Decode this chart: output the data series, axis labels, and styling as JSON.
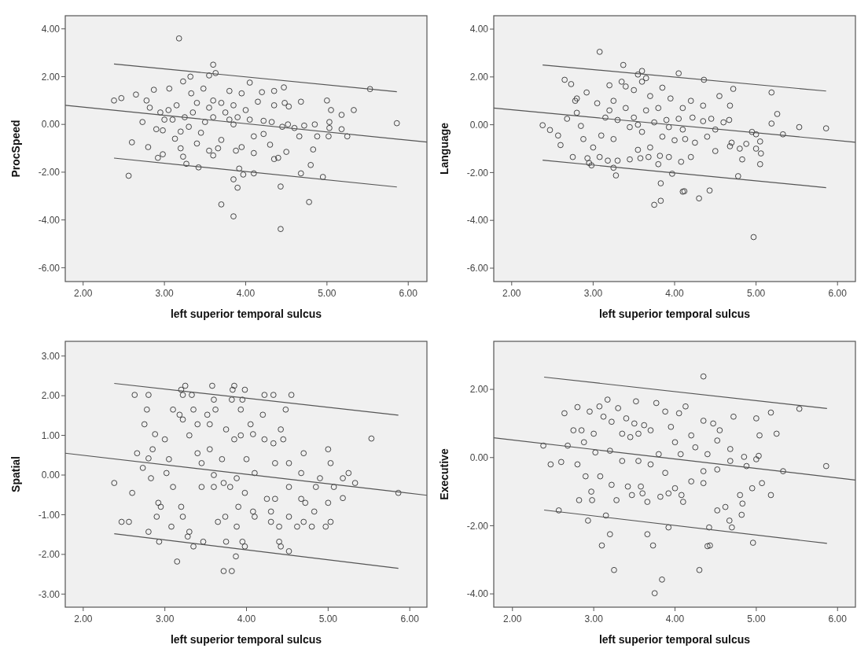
{
  "chart_data": [
    {
      "type": "scatter",
      "xlabel": "left superior temporal sulcus",
      "ylabel": "ProcSpeed",
      "xlim": [
        1.78,
        6.23
      ],
      "xticks": [
        {
          "value": 2,
          "label": "2.00"
        },
        {
          "value": 3,
          "label": "3.00"
        },
        {
          "value": 4,
          "label": "4.00"
        },
        {
          "value": 5,
          "label": "5.00"
        },
        {
          "value": 6,
          "label": "6.00"
        }
      ],
      "ylim": [
        -6.58,
        4.55
      ],
      "yticks": [
        {
          "value": -6,
          "label": "-6.00"
        },
        {
          "value": -4,
          "label": "-4.00"
        },
        {
          "value": -2,
          "label": "-2.00"
        },
        {
          "value": 0,
          "label": "0.00"
        },
        {
          "value": 2,
          "label": "2.00"
        },
        {
          "value": 4,
          "label": "4.00"
        }
      ],
      "series": [
        {
          "marker": "circle",
          "color": "#333333",
          "x": [
            3.18,
            3.6,
            2.56,
            3.7,
            3.85,
            4.43,
            4.78,
            4.43,
            3.9,
            3.85,
            5.53,
            5.86,
            2.38,
            2.47,
            5.33,
            5.25,
            5.18,
            5.18,
            4.95,
            4.68,
            4.1,
            3.97,
            3.92,
            4.8,
            4.83,
            4.5,
            4.35,
            4.4,
            3.42,
            3.27,
            3.23,
            2.92,
            2.98,
            2.6,
            2.8,
            2.73,
            2.65,
            2.87,
            3.06,
            3.23,
            3.32,
            3.63,
            3.55,
            4.05,
            4.47,
            4.35,
            4.2,
            5.0,
            4.68,
            5.05,
            4.53,
            4.48,
            4.35,
            4.15,
            4.52,
            4.6,
            4.72,
            4.85,
            4.88,
            5.02,
            5.03,
            5.03,
            4.66,
            4.3,
            4.1,
            4.1,
            3.95,
            3.88,
            3.7,
            3.66,
            3.55,
            3.6,
            3.45,
            3.5,
            3.55,
            3.4,
            3.35,
            3.25,
            3.15,
            3.1,
            3.05,
            3.0,
            2.95,
            2.82,
            2.78,
            2.9,
            2.98,
            3.2,
            3.3,
            3.6,
            3.8,
            3.75,
            3.85,
            3.9,
            4.0,
            4.05,
            3.95,
            3.8,
            3.7,
            3.85,
            4.22,
            4.32,
            4.22,
            3.33,
            3.48,
            3.6,
            4.45,
            3.4,
            3.2,
            3.13
          ],
          "values": [
            3.6,
            2.5,
            -2.15,
            -3.35,
            -3.85,
            -4.38,
            -3.25,
            -2.6,
            -2.65,
            -2.3,
            1.48,
            0.05,
            1.0,
            1.1,
            0.6,
            -0.5,
            -0.2,
            0.4,
            -2.2,
            -2.05,
            -2.05,
            -2.1,
            -1.85,
            -1.7,
            -1.05,
            -1.15,
            -1.45,
            -1.4,
            -1.8,
            -1.65,
            -1.35,
            -1.4,
            -1.25,
            -0.75,
            -0.95,
            0.1,
            1.25,
            1.45,
            1.5,
            1.8,
            2.0,
            2.15,
            2.05,
            1.75,
            1.55,
            1.4,
            1.35,
            1.0,
            0.95,
            0.6,
            0.75,
            0.9,
            0.8,
            0.95,
            0.0,
            -0.15,
            -0.05,
            0.0,
            -0.5,
            -0.5,
            -0.15,
            0.1,
            -0.5,
            -0.85,
            -1.2,
            -0.5,
            -0.95,
            -1.1,
            -0.65,
            -1.0,
            -1.1,
            -1.3,
            -0.35,
            0.1,
            0.7,
            0.9,
            0.5,
            0.3,
            0.8,
            0.2,
            0.6,
            0.2,
            0.5,
            0.7,
            1.0,
            -0.2,
            -0.25,
            -0.3,
            -0.1,
            0.3,
            0.2,
            0.5,
            0.0,
            0.3,
            0.6,
            0.2,
            1.3,
            1.4,
            0.9,
            0.8,
            0.15,
            0.1,
            -0.4,
            1.3,
            1.5,
            1.0,
            -0.1,
            -0.8,
            -1.0,
            -0.6
          ]
        },
        {
          "type": "line",
          "color": "#555555",
          "x": [
            1.78,
            6.23
          ],
          "values": [
            0.8,
            -0.74
          ]
        },
        {
          "type": "line",
          "color": "#555555",
          "x": [
            2.38,
            5.86
          ],
          "values": [
            2.53,
            1.37
          ]
        },
        {
          "type": "line",
          "color": "#555555",
          "x": [
            2.38,
            5.86
          ],
          "values": [
            -1.41,
            -2.62
          ]
        }
      ]
    },
    {
      "type": "scatter",
      "xlabel": "left superior temporal sulcus",
      "ylabel": "Language",
      "xlim": [
        1.78,
        6.22
      ],
      "xticks": [
        {
          "value": 2,
          "label": "2.00"
        },
        {
          "value": 3,
          "label": "3.00"
        },
        {
          "value": 4,
          "label": "4.00"
        },
        {
          "value": 5,
          "label": "5.00"
        },
        {
          "value": 6,
          "label": "6.00"
        }
      ],
      "ylim": [
        -6.56,
        4.56
      ],
      "yticks": [
        {
          "value": -6,
          "label": "-6.00"
        },
        {
          "value": -4,
          "label": "-4.00"
        },
        {
          "value": -2,
          "label": "-2.00"
        },
        {
          "value": 0,
          "label": "0.00"
        },
        {
          "value": 2,
          "label": "2.00"
        },
        {
          "value": 4,
          "label": "4.00"
        }
      ],
      "series": [
        {
          "marker": "circle",
          "color": "#333333",
          "x": [
            3.08,
            3.37,
            3.6,
            3.55,
            3.6,
            3.65,
            4.05,
            4.36,
            2.65,
            2.73,
            2.8,
            2.78,
            2.92,
            3.2,
            3.35,
            3.4,
            3.5,
            3.85,
            4.72,
            5.19,
            4.55,
            5.26,
            5.19,
            5.53,
            5.86,
            5.33,
            4.95,
            5.0,
            5.05,
            5.06,
            5.0,
            5.05,
            4.88,
            4.83,
            4.8,
            4.78,
            4.68,
            4.7,
            4.68,
            4.67,
            4.6,
            4.5,
            4.5,
            4.43,
            4.3,
            4.1,
            4.12,
            3.97,
            3.83,
            3.83,
            3.75,
            4.97,
            3.28,
            3.25,
            3.3,
            3.18,
            2.95,
            2.98,
            2.93,
            2.75,
            3.08,
            3.45,
            3.58,
            3.68,
            3.8,
            3.82,
            3.93,
            4.08,
            4.2,
            2.38,
            2.47,
            2.57,
            2.6,
            2.68,
            2.8,
            2.85,
            2.88,
            3.0,
            3.1,
            3.15,
            3.05,
            3.2,
            3.25,
            3.3,
            3.4,
            3.45,
            3.5,
            3.55,
            3.6,
            3.65,
            3.7,
            3.75,
            3.8,
            3.85,
            3.9,
            3.93,
            3.95,
            4.0,
            4.05,
            4.1,
            4.1,
            4.13,
            4.2,
            4.22,
            4.25,
            4.35,
            4.35,
            4.4,
            4.45,
            3.25,
            3.55,
            3.7
          ],
          "values": [
            3.05,
            2.5,
            2.25,
            2.1,
            1.8,
            1.95,
            2.15,
            1.88,
            1.88,
            1.7,
            1.1,
            1.0,
            1.35,
            1.65,
            1.8,
            1.6,
            1.45,
            1.55,
            1.5,
            1.35,
            1.2,
            0.45,
            0.05,
            -0.1,
            -0.15,
            -0.4,
            -0.3,
            -0.4,
            -0.7,
            -1.2,
            -1.0,
            -1.65,
            -0.8,
            -1.45,
            -1.0,
            -2.15,
            -0.9,
            -0.75,
            0.8,
            0.2,
            0.1,
            -0.2,
            -1.1,
            -2.75,
            -3.08,
            -2.8,
            -2.78,
            -2.05,
            -2.45,
            -3.18,
            -3.35,
            -4.7,
            -2.12,
            -1.8,
            -1.5,
            -1.5,
            -1.6,
            -1.7,
            -1.4,
            -1.35,
            -1.35,
            -1.45,
            -1.4,
            -1.35,
            -1.65,
            -1.3,
            -1.35,
            -1.55,
            -1.35,
            -0.02,
            -0.22,
            -0.45,
            -0.85,
            0.25,
            0.5,
            -0.05,
            -0.6,
            -0.95,
            -0.45,
            0.3,
            0.9,
            0.6,
            1.0,
            0.2,
            0.7,
            -0.1,
            0.3,
            0.0,
            -0.3,
            0.6,
            1.2,
            0.1,
            0.7,
            -0.5,
            0.2,
            -0.1,
            1.1,
            -0.65,
            0.25,
            0.7,
            -0.2,
            -0.6,
            1.0,
            0.3,
            -0.75,
            0.8,
            0.15,
            -0.5,
            0.25,
            -0.6,
            -1.05,
            -0.95
          ]
        },
        {
          "type": "line",
          "color": "#555555",
          "x": [
            1.78,
            6.22
          ],
          "values": [
            0.7,
            -0.73
          ]
        },
        {
          "type": "line",
          "color": "#555555",
          "x": [
            2.38,
            5.86
          ],
          "values": [
            2.5,
            1.41
          ]
        },
        {
          "type": "line",
          "color": "#555555",
          "x": [
            2.38,
            5.86
          ],
          "values": [
            -1.48,
            -2.63
          ]
        }
      ]
    },
    {
      "type": "scatter",
      "xlabel": "left superior temporal sulcus",
      "ylabel": "Spatial",
      "xlim": [
        1.78,
        6.21
      ],
      "xticks": [
        {
          "value": 2,
          "label": "2.00"
        },
        {
          "value": 3,
          "label": "3.00"
        },
        {
          "value": 4,
          "label": "4.00"
        },
        {
          "value": 5,
          "label": "5.00"
        },
        {
          "value": 6,
          "label": "6.00"
        }
      ],
      "ylim": [
        -3.33,
        3.37
      ],
      "yticks": [
        {
          "value": -3,
          "label": "-3.00"
        },
        {
          "value": -2,
          "label": "-2.00"
        },
        {
          "value": -1,
          "label": "-1.00"
        },
        {
          "value": 0,
          "label": "0.00"
        },
        {
          "value": 1,
          "label": "1.00"
        },
        {
          "value": 2,
          "label": "2.00"
        },
        {
          "value": 3,
          "label": "3.00"
        }
      ],
      "series": [
        {
          "marker": "circle",
          "color": "#333333",
          "x": [
            2.38,
            2.47,
            2.56,
            2.6,
            2.66,
            2.73,
            2.75,
            2.63,
            2.8,
            2.78,
            2.8,
            2.85,
            2.88,
            2.83,
            2.8,
            2.9,
            2.93,
            2.92,
            2.95,
            3.0,
            3.02,
            3.05,
            3.1,
            3.08,
            3.1,
            3.18,
            3.2,
            3.22,
            3.25,
            3.22,
            3.2,
            3.15,
            3.22,
            3.28,
            3.3,
            3.35,
            3.3,
            3.33,
            3.35,
            3.4,
            3.4,
            3.45,
            3.45,
            3.47,
            3.52,
            3.55,
            3.58,
            3.6,
            3.62,
            3.55,
            3.6,
            3.6,
            3.65,
            3.7,
            3.72,
            3.75,
            3.74,
            3.75,
            3.72,
            3.82,
            3.8,
            3.82,
            3.85,
            3.83,
            3.85,
            3.88,
            3.9,
            3.88,
            3.87,
            3.93,
            3.95,
            3.93,
            3.95,
            3.98,
            3.98,
            4.0,
            3.98,
            4.05,
            4.08,
            4.1,
            4.08,
            4.1,
            4.2,
            4.22,
            4.22,
            4.25,
            4.33,
            4.33,
            4.3,
            4.35,
            4.35,
            4.3,
            4.4,
            4.42,
            4.45,
            4.48,
            4.4,
            4.42,
            4.52,
            4.55,
            4.52,
            4.52,
            4.52,
            4.62,
            4.67,
            4.67,
            4.7,
            4.7,
            4.72,
            4.8,
            4.83,
            4.85,
            4.9,
            4.97,
            5.0,
            5.0,
            5.03,
            5.03,
            5.07,
            5.18,
            5.18,
            5.25,
            5.33,
            5.53,
            5.86
          ],
          "values": [
            -0.2,
            -1.18,
            -1.18,
            -0.45,
            0.55,
            0.18,
            1.28,
            2.02,
            2.02,
            1.65,
            0.42,
            0.65,
            1.03,
            -0.08,
            -1.43,
            -1.05,
            -1.68,
            -0.7,
            -0.8,
            0.9,
            0.05,
            0.4,
            -0.3,
            -1.3,
            1.65,
            1.52,
            2.15,
            2.02,
            2.25,
            1.4,
            -0.8,
            -2.18,
            -1.05,
            -1.55,
            -1.43,
            -1.8,
            1.0,
            2.02,
            1.65,
            1.28,
            0.55,
            0.3,
            -0.3,
            -1.68,
            1.52,
            1.28,
            2.25,
            1.9,
            1.65,
            0.65,
            0.0,
            -0.3,
            -1.18,
            0.4,
            -0.2,
            1.15,
            -1.05,
            -1.68,
            -2.42,
            -2.42,
            -0.3,
            1.9,
            2.25,
            2.15,
            0.9,
            -0.08,
            -0.8,
            -1.3,
            -2.05,
            1.65,
            1.9,
            1.0,
            -1.68,
            -1.8,
            2.15,
            0.4,
            -0.45,
            1.28,
            1.03,
            0.05,
            -0.92,
            -1.05,
            1.52,
            2.02,
            0.9,
            -0.6,
            2.02,
            0.8,
            -0.92,
            0.3,
            -0.6,
            -1.18,
            -1.3,
            1.15,
            0.9,
            1.65,
            -1.68,
            -1.8,
            -1.92,
            2.02,
            0.3,
            -0.3,
            -1.05,
            -1.3,
            0.05,
            -0.6,
            0.55,
            -1.18,
            -0.7,
            -1.3,
            -0.92,
            -0.3,
            -0.08,
            -1.3,
            0.65,
            -0.7,
            0.3,
            -1.18,
            -0.3,
            -0.08,
            -0.58,
            0.05,
            -0.2,
            0.92,
            -0.45
          ]
        },
        {
          "type": "line",
          "color": "#555555",
          "x": [
            1.78,
            6.21
          ],
          "values": [
            0.55,
            -0.51
          ]
        },
        {
          "type": "line",
          "color": "#555555",
          "x": [
            2.38,
            5.86
          ],
          "values": [
            2.31,
            1.51
          ]
        },
        {
          "type": "line",
          "color": "#555555",
          "x": [
            2.38,
            5.86
          ],
          "values": [
            -1.48,
            -2.35
          ]
        }
      ]
    },
    {
      "type": "scatter",
      "xlabel": "left superior temporal sulcus",
      "ylabel": "Executive",
      "xlim": [
        1.77,
        6.22
      ],
      "xticks": [
        {
          "value": 2,
          "label": "2.00"
        },
        {
          "value": 3,
          "label": "3.00"
        },
        {
          "value": 4,
          "label": "4.00"
        },
        {
          "value": 5,
          "label": "5.00"
        },
        {
          "value": 6,
          "label": "6.00"
        }
      ],
      "ylim": [
        -4.39,
        3.41
      ],
      "yticks": [
        {
          "value": -4,
          "label": "-4.00"
        },
        {
          "value": -2,
          "label": "-2.00"
        },
        {
          "value": 0,
          "label": "0.00"
        },
        {
          "value": 2,
          "label": "2.00"
        }
      ],
      "series": [
        {
          "marker": "circle",
          "color": "#333333",
          "x": [
            2.38,
            2.47,
            2.57,
            2.6,
            2.64,
            2.68,
            2.75,
            2.8,
            2.8,
            2.82,
            2.85,
            2.88,
            2.9,
            2.93,
            2.95,
            2.97,
            2.98,
            3.0,
            3.02,
            3.07,
            3.08,
            3.1,
            3.12,
            3.15,
            3.17,
            3.2,
            3.2,
            3.22,
            3.22,
            3.25,
            3.28,
            3.3,
            3.35,
            3.35,
            3.4,
            3.42,
            3.45,
            3.47,
            3.5,
            3.52,
            3.55,
            3.55,
            3.58,
            3.6,
            3.62,
            3.66,
            3.66,
            3.7,
            3.7,
            3.73,
            3.77,
            3.75,
            3.8,
            3.84,
            3.82,
            3.88,
            3.88,
            3.92,
            3.92,
            3.95,
            4.0,
            4.0,
            4.05,
            4.07,
            4.08,
            4.1,
            4.13,
            4.2,
            4.2,
            4.25,
            4.3,
            4.35,
            4.35,
            4.35,
            4.35,
            4.4,
            4.4,
            4.43,
            4.42,
            4.47,
            4.52,
            4.52,
            4.52,
            4.55,
            4.62,
            4.67,
            4.68,
            4.68,
            4.7,
            4.72,
            4.8,
            4.82,
            4.83,
            4.85,
            4.88,
            4.95,
            4.96,
            5.0,
            5.0,
            5.03,
            5.04,
            5.07,
            5.18,
            5.18,
            5.25,
            5.33,
            5.53,
            5.86
          ],
          "values": [
            0.35,
            -0.2,
            -1.55,
            -0.13,
            1.3,
            0.35,
            0.8,
            1.48,
            -0.2,
            -1.25,
            0.8,
            0.45,
            -0.55,
            -1.85,
            1.35,
            -1.0,
            -1.25,
            0.7,
            0.15,
            1.5,
            -0.55,
            -2.58,
            1.2,
            -1.7,
            1.7,
            -2.25,
            0.2,
            -0.8,
            1.05,
            -3.3,
            -1.25,
            1.45,
            0.7,
            -0.1,
            1.15,
            -0.85,
            0.6,
            -1.1,
            1.0,
            1.65,
            0.7,
            -0.1,
            -0.85,
            -1.05,
            0.95,
            -2.25,
            -1.3,
            0.8,
            -0.2,
            -2.58,
            1.6,
            -3.98,
            0.1,
            -3.58,
            -1.15,
            1.35,
            -0.45,
            -2.05,
            -1.05,
            0.9,
            0.45,
            -0.9,
            1.3,
            0.1,
            -1.1,
            -1.3,
            1.5,
            0.65,
            -0.7,
            0.3,
            -3.3,
            2.38,
            1.08,
            -0.4,
            -0.75,
            0.1,
            -2.6,
            -2.58,
            -2.05,
            1.0,
            0.5,
            -0.35,
            -1.55,
            0.8,
            -1.45,
            -1.85,
            0.25,
            -0.1,
            -2.05,
            1.2,
            -1.1,
            -1.68,
            -1.35,
            0.02,
            -0.25,
            -0.9,
            -2.5,
            -0.05,
            1.15,
            0.05,
            0.65,
            -0.75,
            1.32,
            -1.1,
            0.7,
            -0.4,
            1.43,
            -0.25
          ]
        },
        {
          "type": "line",
          "color": "#555555",
          "x": [
            1.77,
            6.22
          ],
          "values": [
            0.58,
            -0.66
          ]
        },
        {
          "type": "line",
          "color": "#555555",
          "x": [
            2.39,
            5.87
          ],
          "values": [
            2.36,
            1.44
          ]
        },
        {
          "type": "line",
          "color": "#555555",
          "x": [
            2.39,
            5.87
          ],
          "values": [
            -1.54,
            -2.52
          ]
        }
      ]
    }
  ]
}
